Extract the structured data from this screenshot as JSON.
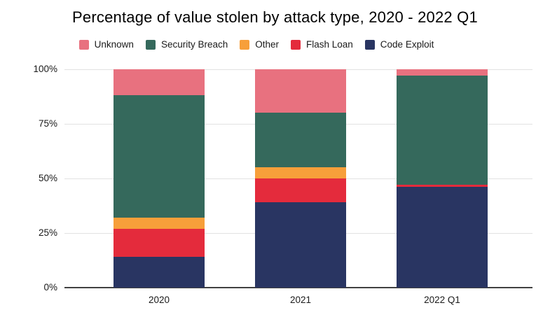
{
  "title": "Percentage of value stolen by attack type, 2020 - 2022 Q1",
  "chart_data": {
    "type": "bar",
    "stacked": true,
    "title": "Percentage of value stolen by attack type, 2020 - 2022 Q1",
    "categories": [
      "2020",
      "2021",
      "2022 Q1"
    ],
    "series": [
      {
        "name": "Code Exploit",
        "color": "#293562",
        "values": [
          14,
          39,
          46
        ]
      },
      {
        "name": "Flash Loan",
        "color": "#E42B3C",
        "values": [
          13,
          11,
          1
        ]
      },
      {
        "name": "Other",
        "color": "#F79F3A",
        "values": [
          5,
          5,
          0
        ]
      },
      {
        "name": "Security Breach",
        "color": "#35695C",
        "values": [
          56,
          25,
          50
        ]
      },
      {
        "name": "Unknown",
        "color": "#E8717F",
        "values": [
          12,
          20,
          3
        ]
      }
    ],
    "legend": {
      "position": "top",
      "order": [
        "Unknown",
        "Security Breach",
        "Other",
        "Flash Loan",
        "Code Exploit"
      ]
    },
    "y_axis": {
      "ticks": [
        "100%",
        "75%",
        "50%",
        "25%",
        "0%"
      ],
      "tick_values": [
        100,
        75,
        50,
        25,
        0
      ],
      "min": 0,
      "max": 100,
      "unit": "%"
    },
    "xlabel": "",
    "ylabel": "",
    "grid": true,
    "layout": {
      "background": "#ffffff",
      "gridline_color": "#e2e2e2",
      "axis_line_color": "#424242",
      "text_color": "#1a1a1a"
    }
  }
}
